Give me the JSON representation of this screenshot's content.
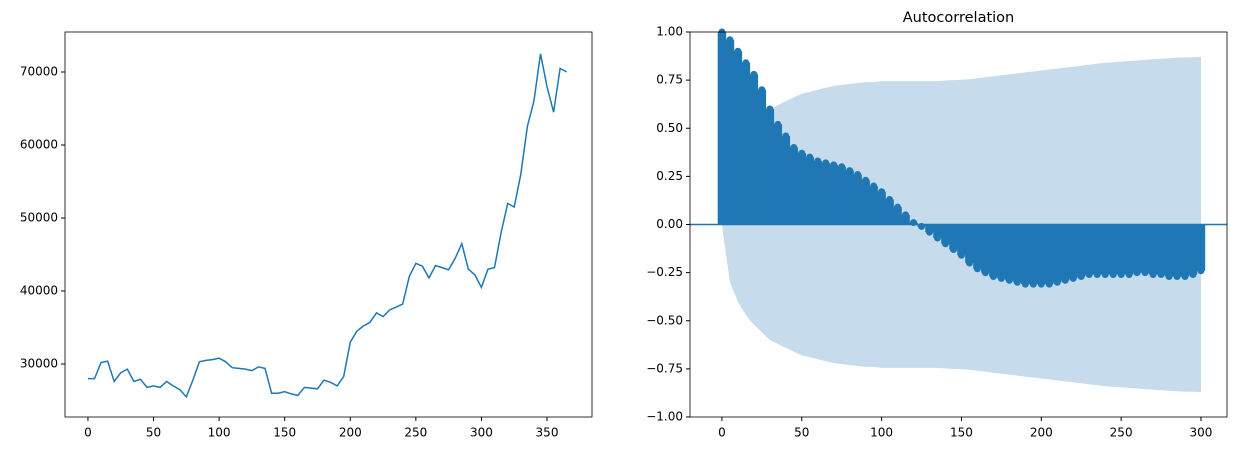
{
  "chart_data": [
    {
      "type": "line",
      "color": "#1f77b4",
      "x": [
        0,
        5,
        10,
        15,
        20,
        25,
        30,
        35,
        40,
        45,
        50,
        55,
        60,
        65,
        70,
        75,
        80,
        85,
        90,
        95,
        100,
        105,
        110,
        115,
        120,
        125,
        130,
        135,
        140,
        145,
        150,
        155,
        160,
        165,
        170,
        175,
        180,
        185,
        190,
        195,
        200,
        205,
        210,
        215,
        220,
        225,
        230,
        235,
        240,
        245,
        250,
        255,
        260,
        265,
        270,
        275,
        280,
        285,
        290,
        295,
        300,
        305,
        310,
        315,
        320,
        325,
        330,
        335,
        340,
        345,
        350,
        355,
        360,
        365
      ],
      "values": [
        28000,
        28000,
        30200,
        30400,
        27600,
        28800,
        29300,
        27600,
        27900,
        26800,
        27000,
        26800,
        27600,
        27000,
        26500,
        25500,
        27800,
        30300,
        30500,
        30600,
        30800,
        30300,
        29500,
        29400,
        29300,
        29100,
        29600,
        29400,
        26000,
        26000,
        26200,
        25900,
        25700,
        26800,
        26700,
        26600,
        27800,
        27500,
        27000,
        28300,
        33000,
        34500,
        35200,
        35700,
        37000,
        36500,
        37400,
        37800,
        38200,
        42000,
        43800,
        43400,
        41800,
        43500,
        43200,
        42900,
        44500,
        46500,
        43000,
        42200,
        40500,
        43000,
        43200,
        48000,
        52000,
        51500,
        56000,
        62500,
        66000,
        72500,
        68000,
        64500,
        70500,
        70000
      ],
      "xlim": [
        -17.5,
        384.3
      ],
      "ylim": [
        22740,
        75480
      ],
      "xticks": [
        0,
        50,
        100,
        150,
        200,
        250,
        300,
        350
      ],
      "yticks": [
        30000,
        40000,
        50000,
        60000,
        70000
      ]
    },
    {
      "type": "acf",
      "title": "Autocorrelation",
      "color": "#1f77b4",
      "band_color": "#c6dbec",
      "x": [
        0,
        5,
        10,
        15,
        20,
        25,
        30,
        35,
        40,
        45,
        50,
        55,
        60,
        65,
        70,
        75,
        80,
        85,
        90,
        95,
        100,
        105,
        110,
        115,
        120,
        125,
        130,
        135,
        140,
        145,
        150,
        155,
        160,
        165,
        170,
        175,
        180,
        185,
        190,
        195,
        200,
        205,
        210,
        215,
        220,
        225,
        230,
        235,
        240,
        245,
        250,
        255,
        260,
        265,
        270,
        275,
        280,
        285,
        290,
        295,
        300
      ],
      "values": [
        1,
        0.96,
        0.9,
        0.84,
        0.78,
        0.7,
        0.6,
        0.52,
        0.46,
        0.4,
        0.37,
        0.35,
        0.33,
        0.32,
        0.31,
        0.3,
        0.28,
        0.26,
        0.23,
        0.2,
        0.17,
        0.13,
        0.09,
        0.05,
        0.01,
        -0.01,
        -0.04,
        -0.07,
        -0.1,
        -0.13,
        -0.16,
        -0.2,
        -0.23,
        -0.25,
        -0.27,
        -0.28,
        -0.29,
        -0.3,
        -0.31,
        -0.31,
        -0.31,
        -0.31,
        -0.3,
        -0.29,
        -0.28,
        -0.27,
        -0.26,
        -0.26,
        -0.26,
        -0.26,
        -0.26,
        -0.26,
        -0.25,
        -0.25,
        -0.26,
        -0.26,
        -0.27,
        -0.27,
        -0.27,
        -0.26,
        -0.24
      ],
      "confint": [
        0,
        0.3,
        0.4,
        0.47,
        0.52,
        0.56,
        0.6,
        0.62,
        0.64,
        0.66,
        0.68,
        0.69,
        0.7,
        0.71,
        0.72,
        0.725,
        0.73,
        0.735,
        0.74,
        0.74,
        0.745,
        0.745,
        0.745,
        0.745,
        0.745,
        0.745,
        0.745,
        0.745,
        0.748,
        0.75,
        0.752,
        0.755,
        0.76,
        0.765,
        0.77,
        0.775,
        0.78,
        0.785,
        0.79,
        0.795,
        0.8,
        0.805,
        0.81,
        0.815,
        0.82,
        0.825,
        0.83,
        0.835,
        0.84,
        0.843,
        0.846,
        0.849,
        0.852,
        0.855,
        0.858,
        0.861,
        0.864,
        0.866,
        0.868,
        0.869,
        0.87
      ],
      "xlim": [
        -20,
        316.3
      ],
      "ylim": [
        -1,
        1
      ],
      "xticks": [
        0,
        50,
        100,
        150,
        200,
        250,
        300
      ],
      "yticks": [
        {
          "value": -1,
          "label": "−1.00"
        },
        {
          "value": -0.75,
          "label": "−0.75"
        },
        {
          "value": -0.5,
          "label": "−0.50"
        },
        {
          "value": -0.25,
          "label": "−0.25"
        },
        {
          "value": 0,
          "label": "0.00"
        },
        {
          "value": 0.25,
          "label": "0.25"
        },
        {
          "value": 0.5,
          "label": "0.50"
        },
        {
          "value": 0.75,
          "label": "0.75"
        },
        {
          "value": 1,
          "label": "1.00"
        }
      ]
    }
  ]
}
